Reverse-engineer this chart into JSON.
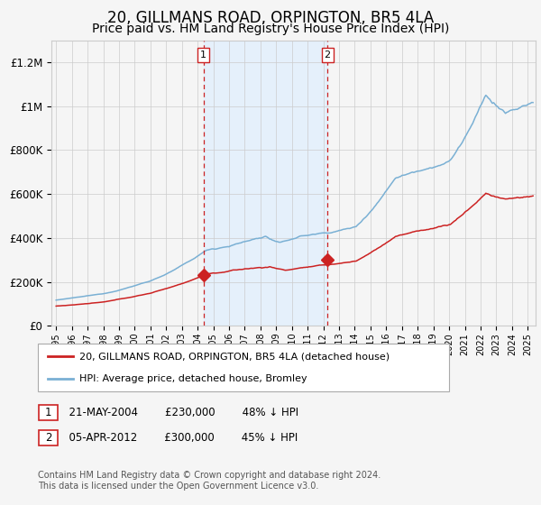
{
  "title": "20, GILLMANS ROAD, ORPINGTON, BR5 4LA",
  "subtitle": "Price paid vs. HM Land Registry's House Price Index (HPI)",
  "title_fontsize": 12,
  "subtitle_fontsize": 10,
  "background_color": "#f5f5f5",
  "plot_bg_color": "#f5f5f5",
  "grid_color": "#cccccc",
  "hpi_color": "#7ab0d4",
  "price_color": "#cc2222",
  "shade_color": "#ddeeff",
  "sale1_date_num": 2004.38,
  "sale1_price": 230000,
  "sale2_date_num": 2012.26,
  "sale2_price": 300000,
  "ylim": [
    0,
    1300000
  ],
  "xlim_start": 1994.7,
  "xlim_end": 2025.5,
  "legend_line1": "20, GILLMANS ROAD, ORPINGTON, BR5 4LA (detached house)",
  "legend_line2": "HPI: Average price, detached house, Bromley",
  "yticks": [
    0,
    200000,
    400000,
    600000,
    800000,
    1000000,
    1200000
  ],
  "ytick_labels": [
    "£0",
    "£200K",
    "£400K",
    "£600K",
    "£800K",
    "£1M",
    "£1.2M"
  ]
}
